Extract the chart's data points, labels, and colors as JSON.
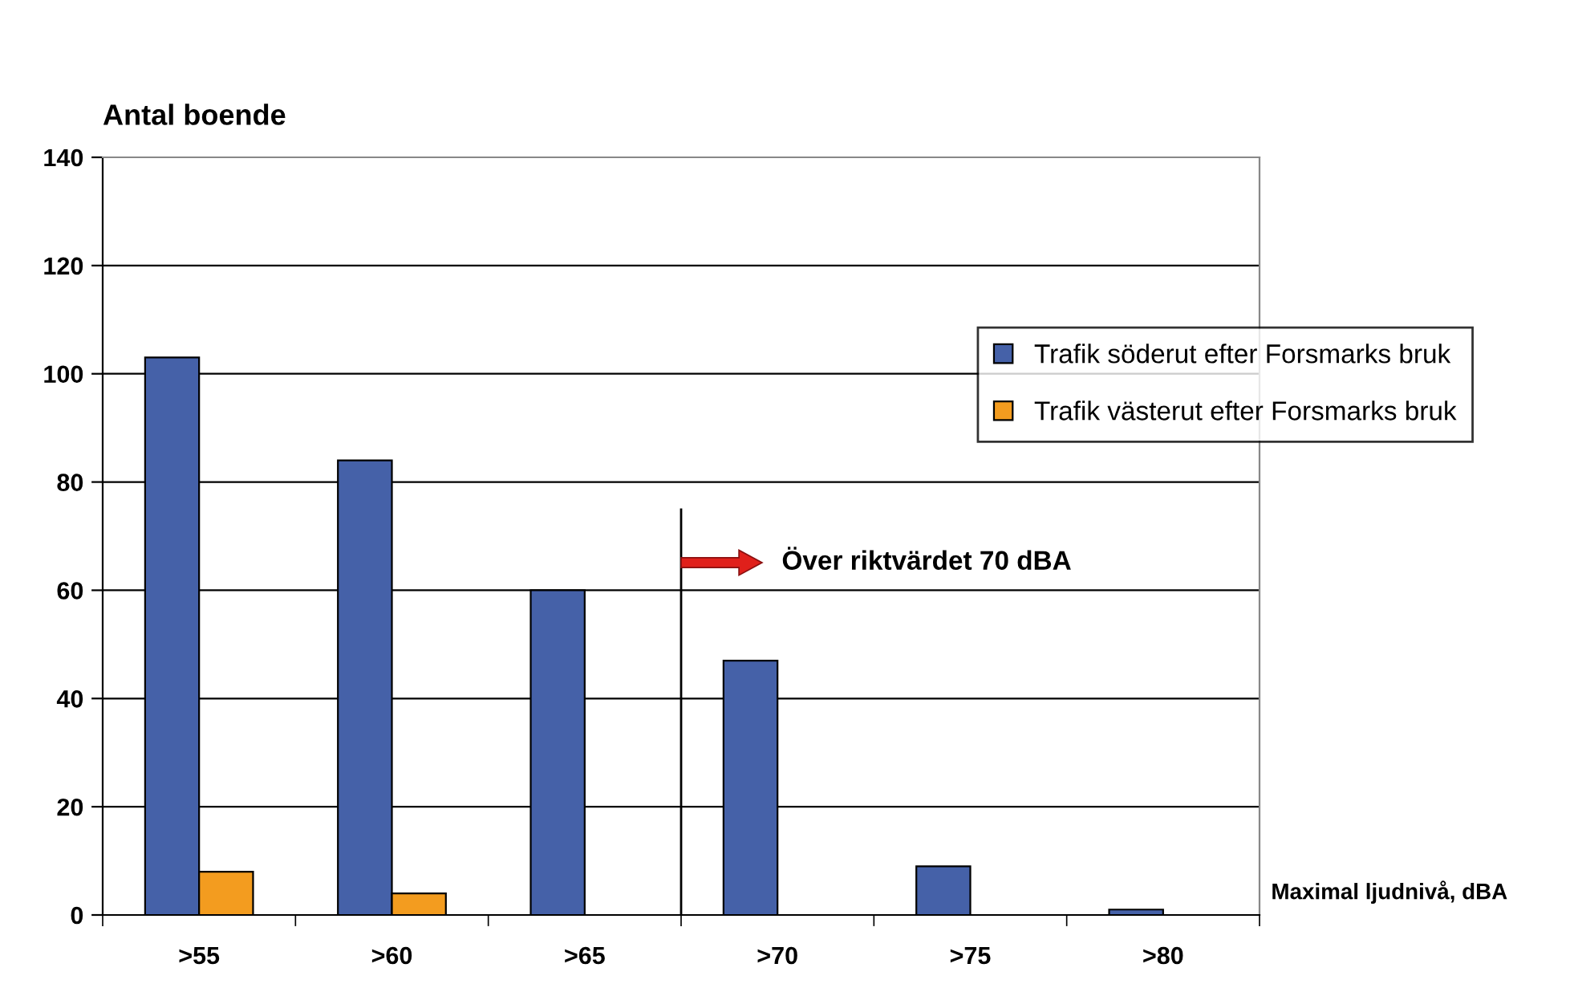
{
  "chart_data": {
    "type": "bar",
    "ylabel": "Antal boende",
    "xlabel": "Maximal ljudnivå, dBA",
    "categories": [
      ">55",
      ">60",
      ">65",
      ">70",
      ">75",
      ">80"
    ],
    "series": [
      {
        "name": "Trafik söderut efter Forsmarks bruk",
        "color": "#4561a8",
        "values": [
          103,
          84,
          60,
          47,
          9,
          1
        ]
      },
      {
        "name": "Trafik västerut efter Forsmarks bruk",
        "color": "#f39c1f",
        "values": [
          8,
          4,
          null,
          null,
          null,
          null
        ]
      }
    ],
    "ylim": [
      0,
      140
    ],
    "yticks": [
      0,
      20,
      40,
      60,
      80,
      100,
      120,
      140
    ],
    "annotations": [
      "Över riktvärdet 70 dBA"
    ],
    "grid": "y",
    "legend": "right"
  }
}
